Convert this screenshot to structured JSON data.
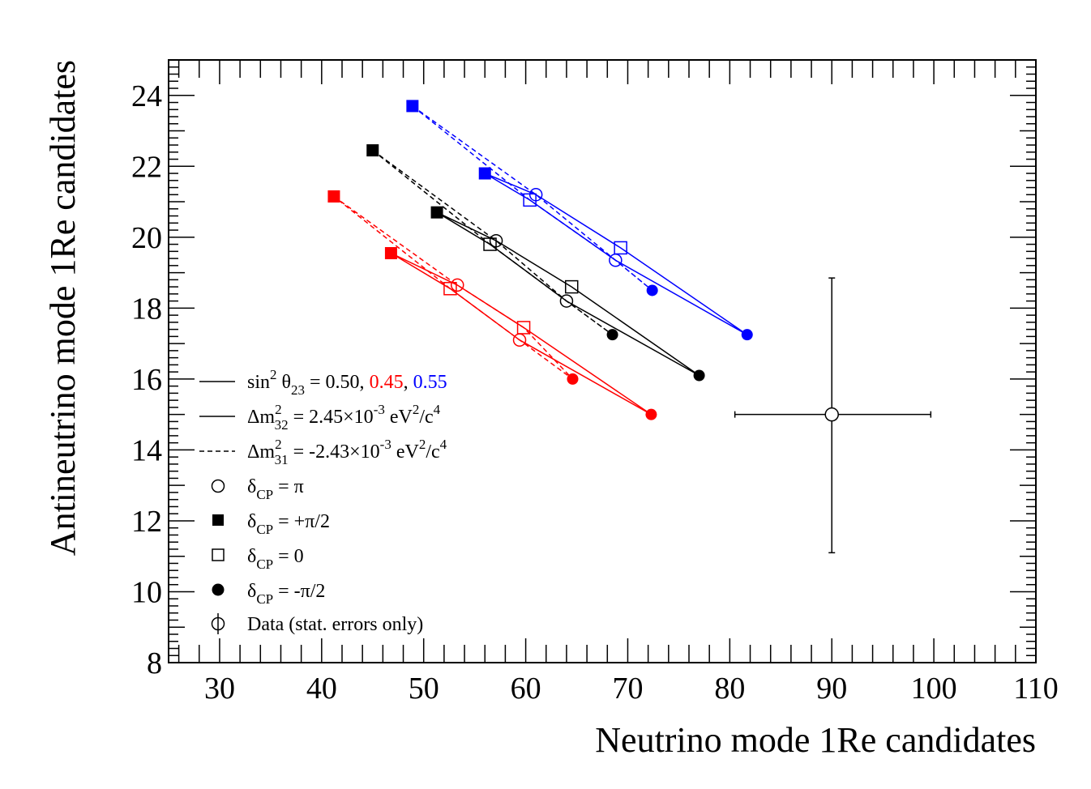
{
  "chart_data": {
    "type": "scatter",
    "xlabel": "Neutrino mode 1Re candidates",
    "ylabel": "Antineutrino mode 1Re candidates",
    "xlim": [
      25,
      110
    ],
    "ylim": [
      8,
      25
    ],
    "xticks": [
      30,
      40,
      50,
      60,
      70,
      80,
      90,
      100,
      110
    ],
    "yticks": [
      8,
      10,
      12,
      14,
      16,
      18,
      20,
      22,
      24
    ],
    "xtick_labels": [
      "30",
      "40",
      "50",
      "60",
      "70",
      "80",
      "90",
      "100",
      "110"
    ],
    "ytick_labels": [
      "8",
      "10",
      "12",
      "14",
      "16",
      "18",
      "20",
      "22",
      "24"
    ],
    "grid": false,
    "legend_placement": "left",
    "colors": {
      "s050": "#000000",
      "s045": "#ff0000",
      "s055": "#0000ff",
      "data": "#000000"
    },
    "ellipses": [
      {
        "sin2": "0.50",
        "color": "#000000",
        "normal": [
          {
            "cp": "+pi/2",
            "x": 51.3,
            "y": 20.7
          },
          {
            "cp": "pi",
            "x": 57.1,
            "y": 19.9
          },
          {
            "cp": "0",
            "x": 64.5,
            "y": 18.6
          },
          {
            "cp": "-pi/2",
            "x": 77.0,
            "y": 16.1
          },
          {
            "cp": "pi",
            "x": 64.0,
            "y": 18.2
          },
          {
            "cp": "0",
            "x": 56.5,
            "y": 19.8
          },
          {
            "cp": "+pi/2",
            "x": 51.3,
            "y": 20.7
          }
        ],
        "inverted": [
          {
            "cp": "+pi/2",
            "x": 45.0,
            "y": 22.45
          },
          {
            "cp": "pi",
            "x": 57.1,
            "y": 19.9
          },
          {
            "cp": "0",
            "x": 64.0,
            "y": 18.2
          },
          {
            "cp": "-pi/2",
            "x": 68.5,
            "y": 17.25
          },
          {
            "cp": "pi",
            "x": 64.0,
            "y": 18.2
          },
          {
            "cp": "0",
            "x": 56.5,
            "y": 19.8
          },
          {
            "cp": "+pi/2",
            "x": 45.0,
            "y": 22.45
          }
        ],
        "markers": [
          {
            "shape": "filled-square",
            "x": 51.3,
            "y": 20.7
          },
          {
            "shape": "filled-square",
            "x": 45.0,
            "y": 22.45
          },
          {
            "shape": "open-circle",
            "x": 57.1,
            "y": 19.9
          },
          {
            "shape": "open-circle",
            "x": 64.0,
            "y": 18.2
          },
          {
            "shape": "open-square",
            "x": 56.5,
            "y": 19.8
          },
          {
            "shape": "open-square",
            "x": 64.5,
            "y": 18.6
          },
          {
            "shape": "filled-circle",
            "x": 77.0,
            "y": 16.1
          },
          {
            "shape": "filled-circle",
            "x": 68.5,
            "y": 17.25
          }
        ]
      },
      {
        "sin2": "0.45",
        "color": "#ff0000",
        "normal": [
          {
            "cp": "+pi/2",
            "x": 46.8,
            "y": 19.55
          },
          {
            "cp": "pi",
            "x": 53.3,
            "y": 18.65
          },
          {
            "cp": "0",
            "x": 59.8,
            "y": 17.45
          },
          {
            "cp": "-pi/2",
            "x": 72.3,
            "y": 15.0
          },
          {
            "cp": "pi",
            "x": 59.4,
            "y": 17.1
          },
          {
            "cp": "0",
            "x": 52.6,
            "y": 18.55
          },
          {
            "cp": "+pi/2",
            "x": 46.8,
            "y": 19.55
          }
        ],
        "inverted": [
          {
            "cp": "+pi/2",
            "x": 41.2,
            "y": 21.15
          },
          {
            "cp": "pi",
            "x": 53.3,
            "y": 18.65
          },
          {
            "cp": "0",
            "x": 59.8,
            "y": 17.45
          },
          {
            "cp": "-pi/2",
            "x": 64.6,
            "y": 16.0
          },
          {
            "cp": "pi",
            "x": 59.4,
            "y": 17.1
          },
          {
            "cp": "0",
            "x": 52.6,
            "y": 18.55
          },
          {
            "cp": "+pi/2",
            "x": 41.2,
            "y": 21.15
          }
        ],
        "markers": [
          {
            "shape": "filled-square",
            "x": 46.8,
            "y": 19.55
          },
          {
            "shape": "filled-square",
            "x": 41.2,
            "y": 21.15
          },
          {
            "shape": "open-circle",
            "x": 53.3,
            "y": 18.65
          },
          {
            "shape": "open-circle",
            "x": 59.4,
            "y": 17.1
          },
          {
            "shape": "open-square",
            "x": 52.6,
            "y": 18.55
          },
          {
            "shape": "open-square",
            "x": 59.8,
            "y": 17.45
          },
          {
            "shape": "filled-circle",
            "x": 72.3,
            "y": 15.0
          },
          {
            "shape": "filled-circle",
            "x": 64.6,
            "y": 16.0
          }
        ]
      },
      {
        "sin2": "0.55",
        "color": "#0000ff",
        "normal": [
          {
            "cp": "+pi/2",
            "x": 56.0,
            "y": 21.8
          },
          {
            "cp": "pi",
            "x": 61.0,
            "y": 21.2
          },
          {
            "cp": "0",
            "x": 69.3,
            "y": 19.7
          },
          {
            "cp": "-pi/2",
            "x": 81.7,
            "y": 17.25
          },
          {
            "cp": "pi",
            "x": 68.8,
            "y": 19.35
          },
          {
            "cp": "0",
            "x": 60.4,
            "y": 21.05
          },
          {
            "cp": "+pi/2",
            "x": 56.0,
            "y": 21.8
          }
        ],
        "inverted": [
          {
            "cp": "+pi/2",
            "x": 48.9,
            "y": 23.7
          },
          {
            "cp": "pi",
            "x": 61.0,
            "y": 21.2
          },
          {
            "cp": "0",
            "x": 68.8,
            "y": 19.35
          },
          {
            "cp": "-pi/2",
            "x": 72.4,
            "y": 18.5
          },
          {
            "cp": "pi",
            "x": 68.8,
            "y": 19.35
          },
          {
            "cp": "0",
            "x": 60.4,
            "y": 21.05
          },
          {
            "cp": "+pi/2",
            "x": 48.9,
            "y": 23.7
          }
        ],
        "markers": [
          {
            "shape": "filled-square",
            "x": 56.0,
            "y": 21.8
          },
          {
            "shape": "filled-square",
            "x": 48.9,
            "y": 23.7
          },
          {
            "shape": "open-circle",
            "x": 61.0,
            "y": 21.2
          },
          {
            "shape": "open-circle",
            "x": 68.8,
            "y": 19.35
          },
          {
            "shape": "open-square",
            "x": 60.4,
            "y": 21.05
          },
          {
            "shape": "open-square",
            "x": 69.3,
            "y": 19.7
          },
          {
            "shape": "filled-circle",
            "x": 81.7,
            "y": 17.25
          },
          {
            "shape": "filled-circle",
            "x": 72.4,
            "y": 18.5
          }
        ]
      }
    ],
    "data_point": {
      "x": 90,
      "y": 15,
      "x_err": [
        80.5,
        99.7
      ],
      "y_err": [
        11.1,
        18.85
      ]
    },
    "legend": {
      "l1": {
        "prefix": "sin",
        "sup": "2",
        "theta": "θ",
        "sub": "23",
        "eq": " = 0.50, ",
        "red": "0.45",
        "comma": ", ",
        "blue": "0.55"
      },
      "l2": {
        "delta": "Δm",
        "sup": "2",
        "sub": "32",
        "eq": " = 2.45×10",
        "exp": "-3",
        "unit": " eV",
        "unit_sup": "2",
        "unit_mid": "/c",
        "unit_sup2": "4"
      },
      "l3": {
        "delta": "Δm",
        "sup": "2",
        "sub": "31",
        "eq": " = -2.43×10",
        "exp": "-3",
        "unit": " eV",
        "unit_sup": "2",
        "unit_mid": "/c",
        "unit_sup2": "4"
      },
      "cp_items": [
        {
          "shape": "open-circle",
          "sym": "δ",
          "sub": "CP",
          "val": " = π"
        },
        {
          "shape": "filled-square",
          "sym": "δ",
          "sub": "CP",
          "val": " = +π/2"
        },
        {
          "shape": "open-square",
          "sym": "δ",
          "sub": "CP",
          "val": " = 0"
        },
        {
          "shape": "filled-circle",
          "sym": "δ",
          "sub": "CP",
          "val": " = -π/2"
        }
      ],
      "data_label": "Data (stat. errors only)"
    }
  }
}
